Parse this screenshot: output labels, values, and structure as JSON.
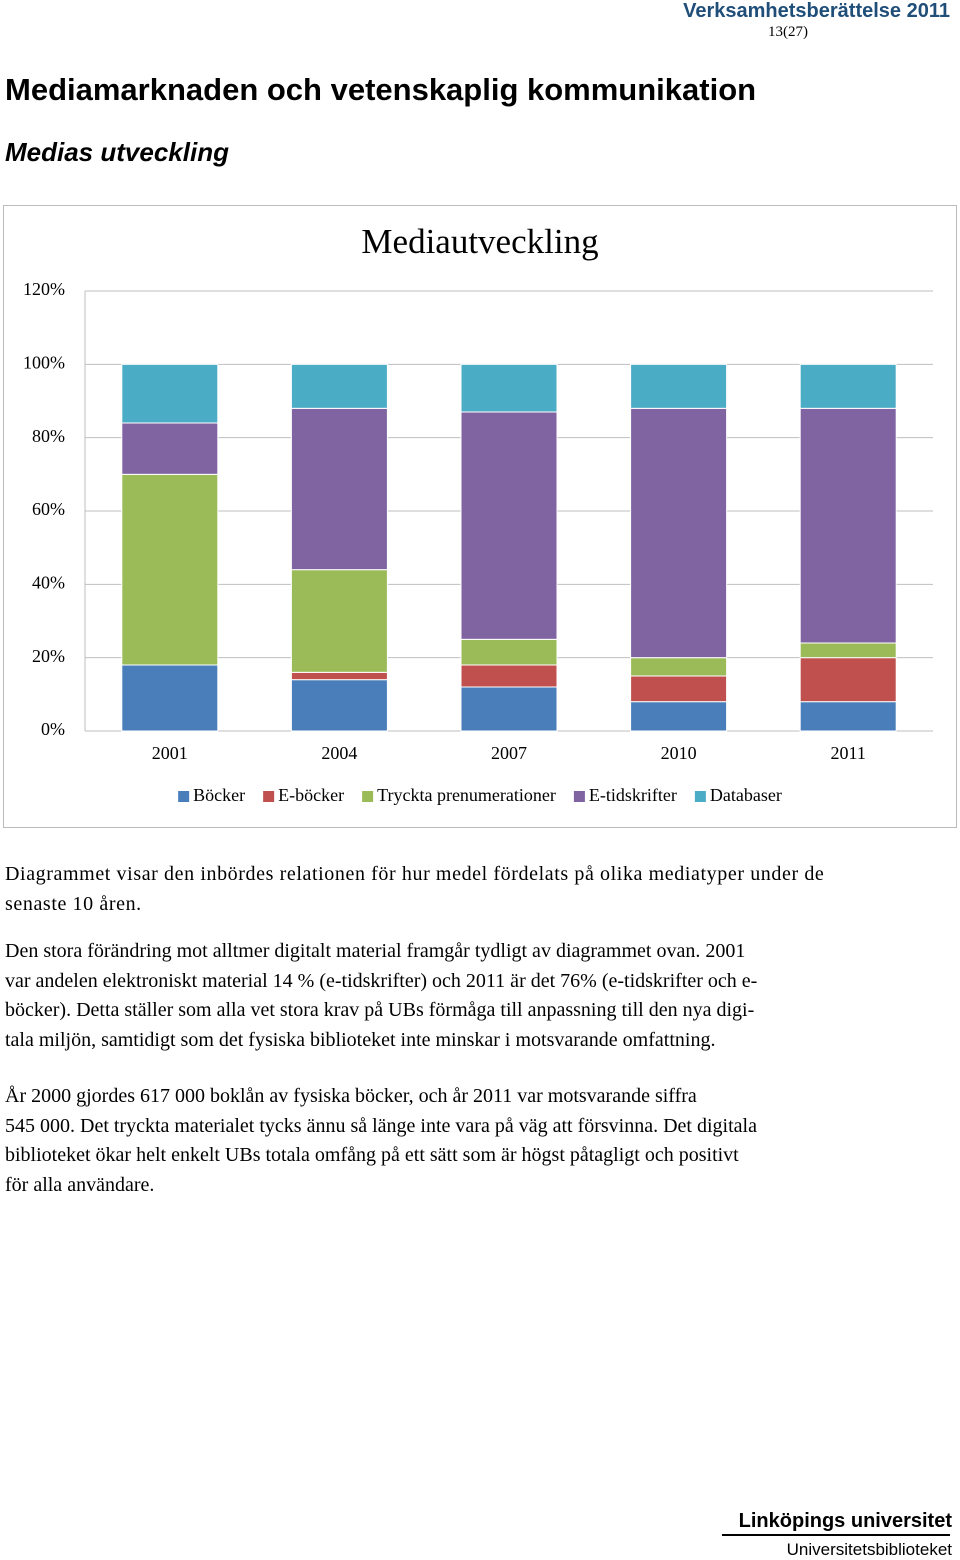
{
  "header": {
    "report": "Verksamhetsberättelse 2011",
    "page": "13(27)"
  },
  "title": "Mediamarknaden och vetenskaplig kommunikation",
  "subtitle": "Medias utveckling",
  "chart_data": {
    "type": "stacked-bar",
    "title": "Mediautveckling",
    "categories": [
      "2001",
      "2004",
      "2007",
      "2010",
      "2011"
    ],
    "series": [
      {
        "name": "Böcker",
        "color": "#4a7ebb",
        "values": [
          18,
          14,
          12,
          8,
          8
        ]
      },
      {
        "name": "E-böcker",
        "color": "#c0504d",
        "values": [
          0,
          2,
          6,
          7,
          12
        ]
      },
      {
        "name": "Tryckta prenumerationer",
        "color": "#9bbb59",
        "values": [
          52,
          28,
          7,
          5,
          4
        ]
      },
      {
        "name": "E-tidskrifter",
        "color": "#8064a2",
        "values": [
          14,
          44,
          62,
          68,
          64
        ]
      },
      {
        "name": "Databaser",
        "color": "#4bacc6",
        "values": [
          16,
          12,
          13,
          12,
          12
        ]
      }
    ],
    "ylim": [
      0,
      120
    ],
    "yticks": [
      {
        "value": 0,
        "label": "0%"
      },
      {
        "value": 20,
        "label": "20%"
      },
      {
        "value": 40,
        "label": "40%"
      },
      {
        "value": 60,
        "label": "60%"
      },
      {
        "value": 80,
        "label": "80%"
      },
      {
        "value": 100,
        "label": "100%"
      },
      {
        "value": 120,
        "label": "120%"
      }
    ],
    "grid": true,
    "legend": "bottom"
  },
  "paragraphs": [
    [
      "Diagrammet visar den inbördes relationen för hur medel fördelats på olika mediatyper under de",
      "senaste 10 åren."
    ],
    [
      "Den stora förändring mot alltmer digitalt material framgår tydligt av diagrammet ovan. 2001",
      "var andelen elektroniskt material 14 % (e-tidskrifter) och 2011 är det 76% (e-tidskrifter och e-",
      "böcker). Detta ställer som alla vet stora krav på UBs förmåga till anpassning till den nya digi-",
      "tala miljön, samtidigt som det fysiska biblioteket inte minskar i motsvarande omfattning."
    ],
    [
      "År 2000 gjordes 617 000 boklån av fysiska böcker, och år 2011 var motsvarande siffra",
      "545 000. Det tryckta materialet tycks ännu så länge inte vara på väg att försvinna. Det digitala",
      "biblioteket ökar helt enkelt UBs totala omfång på ett sätt som är högst påtagligt och positivt",
      "för alla användare."
    ]
  ],
  "footer": {
    "university": "Linköpings universitet",
    "unit": "Universitetsbiblioteket"
  }
}
